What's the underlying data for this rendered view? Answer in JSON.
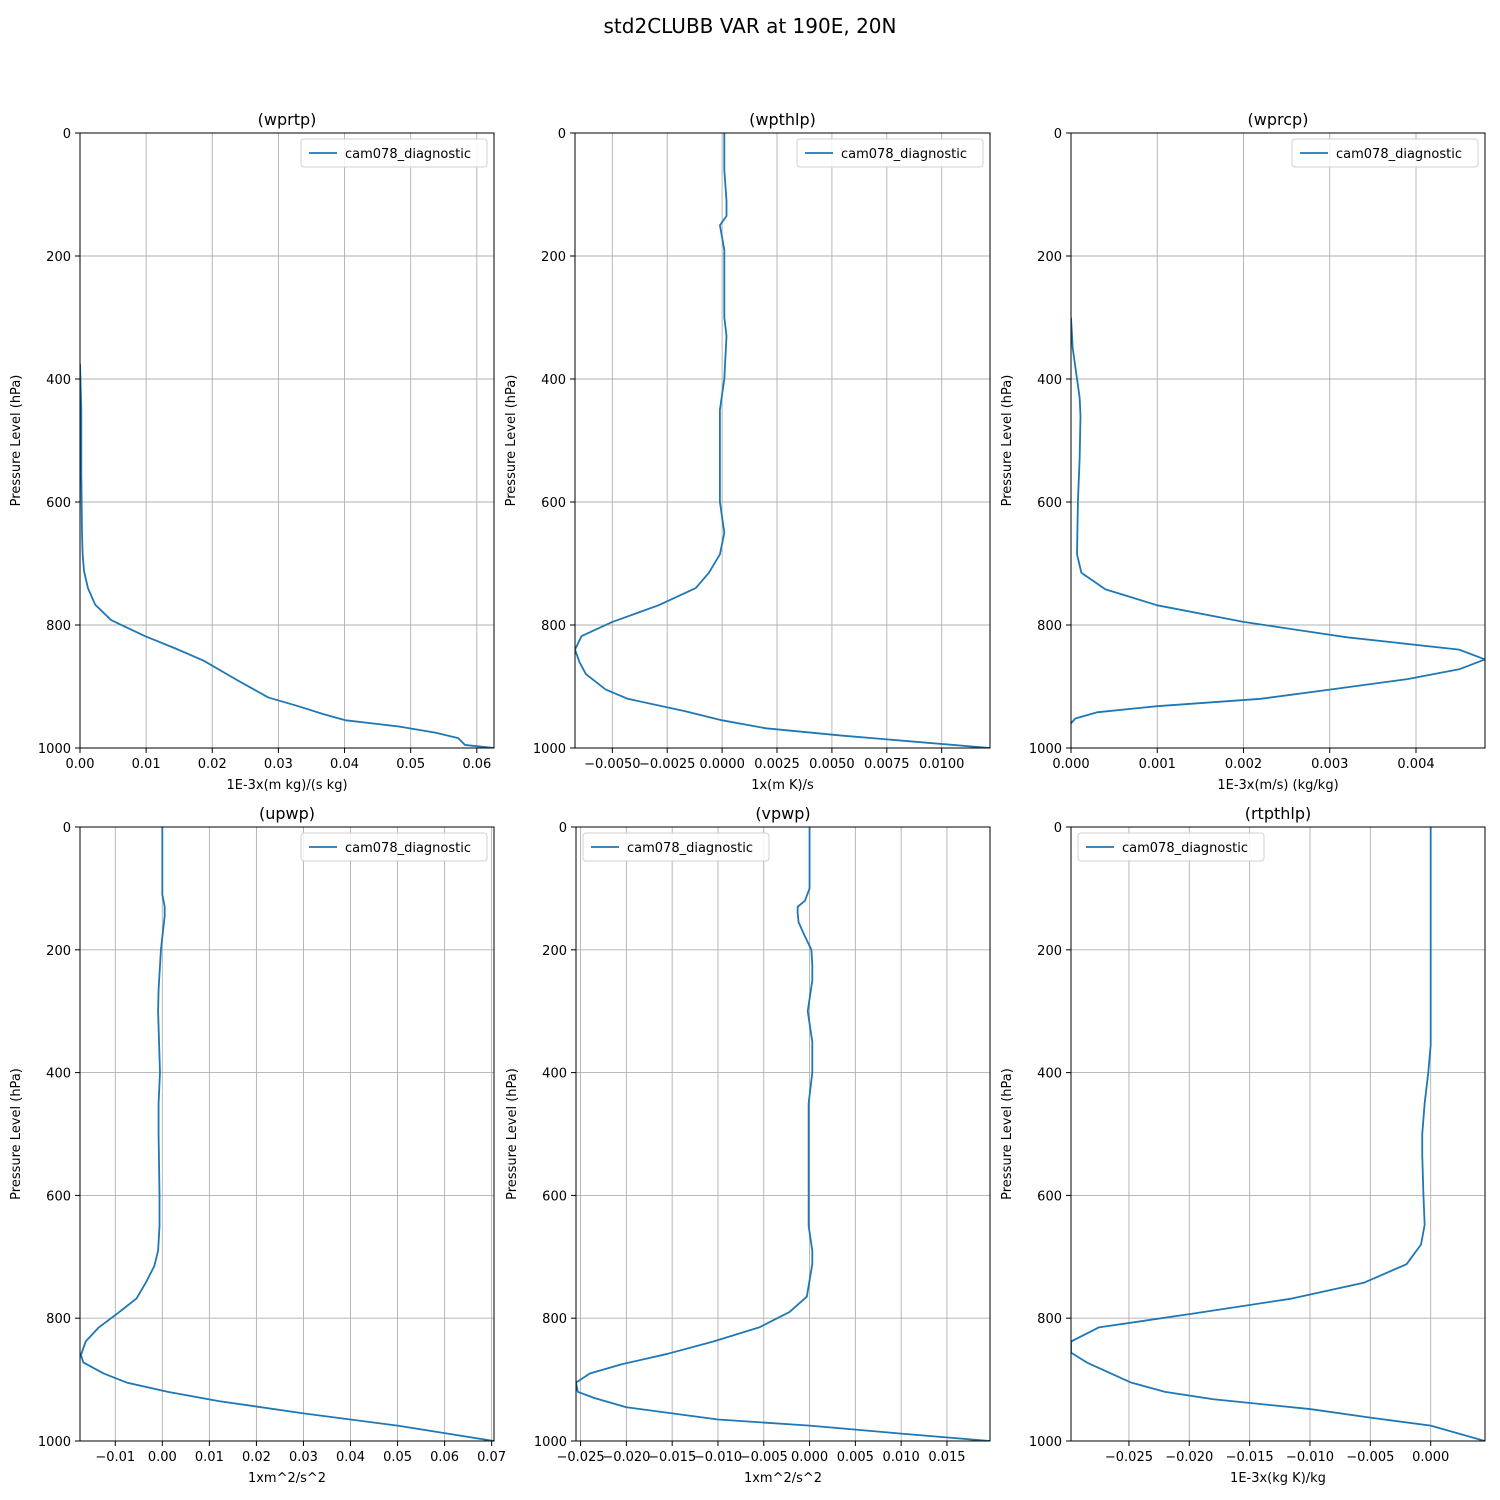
{
  "suptitle": "std2CLUBB VAR at 190E, 20N",
  "colors": {
    "line": "#1f77b4",
    "grid": "#b0b0b0",
    "axes": "#000000"
  },
  "chart_data": [
    {
      "type": "line",
      "title": "(wprtp)",
      "xlabel": "1E-3x(m kg)/(s kg)",
      "ylabel": "Pressure Level (hPa)",
      "xlim": [
        0,
        0.0626
      ],
      "ylim": [
        1000,
        0
      ],
      "xticks": [
        0,
        0.01,
        0.02,
        0.03,
        0.04,
        0.05,
        0.06
      ],
      "xtick_labels": [
        "0.00",
        "0.01",
        "0.02",
        "0.03",
        "0.04",
        "0.05",
        "0.06"
      ],
      "yticks": [
        0,
        200,
        400,
        600,
        800,
        1000
      ],
      "ytick_labels": [
        "0",
        "200",
        "400",
        "600",
        "800",
        "1000"
      ],
      "grid": true,
      "legend": {
        "position": "upper-right",
        "entries": [
          "cam078_diagnostic"
        ]
      },
      "series": [
        {
          "name": "cam078_diagnostic",
          "x": [
            0,
            0.0002,
            0.0002,
            0.0003,
            0.0004,
            0.0006,
            0.0012,
            0.0023,
            0.0047,
            0.0098,
            0.0144,
            0.0187,
            0.0235,
            0.0285,
            0.033,
            0.0368,
            0.0402,
            0.0482,
            0.0537,
            0.0572,
            0.0582,
            0.0626
          ],
          "y": [
            375,
            450,
            550,
            650,
            685,
            712,
            740,
            767,
            792,
            818,
            838,
            858,
            888,
            918,
            932,
            945,
            955,
            965,
            975,
            984,
            995,
            1000
          ]
        }
      ]
    },
    {
      "type": "line",
      "title": "(wpthlp)",
      "xlabel": "1x(m K)/s",
      "ylabel": "Pressure Level (hPa)",
      "xlim": [
        -0.0067,
        0.0122
      ],
      "ylim": [
        1000,
        0
      ],
      "xticks": [
        -0.005,
        -0.0025,
        0,
        0.0025,
        0.005,
        0.0075,
        0.01
      ],
      "xtick_labels": [
        "−0.0050",
        "−0.0025",
        "0.0000",
        "0.0025",
        "0.0050",
        "0.0075",
        "0.0100"
      ],
      "yticks": [
        0,
        200,
        400,
        600,
        800,
        1000
      ],
      "ytick_labels": [
        "0",
        "200",
        "400",
        "600",
        "800",
        "1000"
      ],
      "grid": true,
      "legend": {
        "position": "upper-right",
        "entries": [
          "cam078_diagnostic"
        ]
      },
      "series": [
        {
          "name": "cam078_diagnostic",
          "x": [
            0.0001,
            0.0001,
            0.0002,
            0.0002,
            -0.0001,
            0.0001,
            0.0001,
            0.0001,
            0.0002,
            0.0001,
            -0.0001,
            -0.0001,
            -0.0001,
            0.0001,
            -0.0001,
            -0.0006,
            -0.0012,
            -0.0029,
            -0.005,
            -0.0064,
            -0.0067,
            -0.0065,
            -0.0062,
            -0.0053,
            -0.0043,
            -0.0017,
            0.0,
            0.002,
            0.0055,
            0.0122
          ],
          "y": [
            0,
            60,
            110,
            135,
            150,
            190,
            250,
            300,
            330,
            400,
            450,
            550,
            600,
            650,
            685,
            715,
            740,
            768,
            795,
            818,
            840,
            860,
            880,
            905,
            920,
            940,
            955,
            968,
            980,
            1000
          ]
        }
      ]
    },
    {
      "type": "line",
      "title": "(wprcp)",
      "xlabel": "1E-3x(m/s) (kg/kg)",
      "ylabel": "Pressure Level (hPa)",
      "xlim": [
        0,
        0.0048
      ],
      "ylim": [
        1000,
        0
      ],
      "xticks": [
        0,
        0.001,
        0.002,
        0.003,
        0.004
      ],
      "xtick_labels": [
        "0.000",
        "0.001",
        "0.002",
        "0.003",
        "0.004"
      ],
      "yticks": [
        0,
        200,
        400,
        600,
        800,
        1000
      ],
      "ytick_labels": [
        "0",
        "200",
        "400",
        "600",
        "800",
        "1000"
      ],
      "grid": true,
      "legend": {
        "position": "upper-right",
        "entries": [
          "cam078_diagnostic"
        ]
      },
      "series": [
        {
          "name": "cam078_diagnostic",
          "x": [
            0,
            2e-05,
            6e-05,
            0.0001,
            0.00011,
            0.0001,
            8e-05,
            7e-05,
            0.00012,
            0.0004,
            0.001,
            0.002,
            0.0032,
            0.0045,
            0.0048,
            0.0045,
            0.0039,
            0.003,
            0.0022,
            0.001,
            0.0003,
            5e-05,
            0
          ],
          "y": [
            300,
            350,
            390,
            430,
            460,
            530,
            600,
            685,
            715,
            742,
            768,
            795,
            820,
            840,
            856,
            872,
            888,
            905,
            920,
            932,
            942,
            952,
            960
          ]
        }
      ]
    },
    {
      "type": "line",
      "title": "(upwp)",
      "xlabel": "1xm^2/s^2",
      "ylabel": "Pressure Level (hPa)",
      "xlim": [
        -0.0175,
        0.0705
      ],
      "ylim": [
        1000,
        0
      ],
      "xticks": [
        -0.01,
        0,
        0.01,
        0.02,
        0.03,
        0.04,
        0.05,
        0.06,
        0.07
      ],
      "xtick_labels": [
        "−0.01",
        "0.00",
        "0.01",
        "0.02",
        "0.03",
        "0.04",
        "0.05",
        "0.06",
        "0.07"
      ],
      "yticks": [
        0,
        200,
        400,
        600,
        800,
        1000
      ],
      "ytick_labels": [
        "0",
        "200",
        "400",
        "600",
        "800",
        "1000"
      ],
      "grid": true,
      "legend": {
        "position": "upper-right",
        "entries": [
          "cam078_diagnostic"
        ]
      },
      "series": [
        {
          "name": "cam078_diagnostic",
          "x": [
            0,
            0,
            0,
            0.0005,
            0.0005,
            -0.0003,
            -0.0008,
            -0.0009,
            -0.0007,
            -0.0005,
            -0.0008,
            -0.0008,
            -0.0007,
            -0.0006,
            -0.0006,
            -0.0009,
            -0.0017,
            -0.0035,
            -0.0055,
            -0.0095,
            -0.0135,
            -0.0163,
            -0.0173,
            -0.0168,
            -0.0125,
            -0.0075,
            0.0012,
            0.012,
            0.03,
            0.05,
            0.0705
          ],
          "y": [
            0,
            60,
            110,
            130,
            145,
            200,
            265,
            300,
            350,
            400,
            450,
            500,
            550,
            600,
            650,
            690,
            715,
            742,
            768,
            792,
            815,
            838,
            860,
            872,
            890,
            905,
            920,
            935,
            955,
            975,
            1000
          ]
        }
      ]
    },
    {
      "type": "line",
      "title": "(vpwp)",
      "xlabel": "1xm^2/s^2",
      "ylabel": "Pressure Level (hPa)",
      "xlim": [
        -0.0255,
        0.0197
      ],
      "ylim": [
        1000,
        0
      ],
      "xticks": [
        -0.025,
        -0.02,
        -0.015,
        -0.01,
        -0.005,
        0,
        0.005,
        0.01,
        0.015
      ],
      "xtick_labels": [
        "−0.025",
        "−0.020",
        "−0.015",
        "−0.010",
        "−0.005",
        "0.000",
        "0.005",
        "0.010",
        "0.015"
      ],
      "yticks": [
        0,
        200,
        400,
        600,
        800,
        1000
      ],
      "ytick_labels": [
        "0",
        "200",
        "400",
        "600",
        "800",
        "1000"
      ],
      "grid": true,
      "legend": {
        "position": "upper-left",
        "entries": [
          "cam078_diagnostic"
        ]
      },
      "series": [
        {
          "name": "cam078_diagnostic",
          "x": [
            0,
            0,
            -0.0005,
            -0.0013,
            -0.0013,
            -0.0012,
            -0.0006,
            0.0002,
            0.0003,
            0.0003,
            0.0,
            -0.0002,
            0.0003,
            0.0003,
            -0.0001,
            -0.0001,
            -0.0001,
            -0.0001,
            0.0003,
            0.0003,
            -0.0003,
            -0.0022,
            -0.0055,
            -0.0105,
            -0.0155,
            -0.0205,
            -0.024,
            -0.0255,
            -0.0253,
            -0.0235,
            -0.02,
            -0.015,
            -0.01,
            0,
            0.01,
            0.0197
          ],
          "y": [
            0,
            100,
            120,
            130,
            140,
            155,
            175,
            200,
            225,
            250,
            280,
            300,
            350,
            400,
            450,
            500,
            550,
            650,
            690,
            712,
            765,
            790,
            815,
            838,
            858,
            875,
            890,
            905,
            920,
            930,
            945,
            955,
            965,
            975,
            988,
            1000
          ]
        }
      ]
    },
    {
      "type": "line",
      "title": "(rtpthlp)",
      "xlabel": "1E-3x(kg K)/kg",
      "ylabel": "Pressure Level (hPa)",
      "xlim": [
        -0.0298,
        0.0045
      ],
      "ylim": [
        1000,
        0
      ],
      "xticks": [
        -0.025,
        -0.02,
        -0.015,
        -0.01,
        -0.005,
        0
      ],
      "xtick_labels": [
        "−0.025",
        "−0.020",
        "−0.015",
        "−0.010",
        "−0.005",
        "0.000"
      ],
      "yticks": [
        0,
        200,
        400,
        600,
        800,
        1000
      ],
      "ytick_labels": [
        "0",
        "200",
        "400",
        "600",
        "800",
        "1000"
      ],
      "grid": true,
      "legend": {
        "position": "upper-left",
        "entries": [
          "cam078_diagnostic"
        ]
      },
      "series": [
        {
          "name": "cam078_diagnostic",
          "x": [
            0,
            0,
            0,
            -0.0002,
            -0.0005,
            -0.0007,
            -0.0007,
            -0.0006,
            -0.0005,
            -0.0008,
            -0.002,
            -0.0055,
            -0.0115,
            -0.0195,
            -0.0275,
            -0.0298,
            -0.0298,
            -0.0285,
            -0.0265,
            -0.0248,
            -0.022,
            -0.018,
            -0.01,
            -0.005,
            0,
            0.0045
          ],
          "y": [
            0,
            300,
            355,
            400,
            450,
            500,
            535,
            600,
            648,
            680,
            712,
            742,
            768,
            792,
            815,
            838,
            856,
            872,
            890,
            905,
            920,
            932,
            948,
            962,
            975,
            1000
          ]
        }
      ]
    }
  ]
}
